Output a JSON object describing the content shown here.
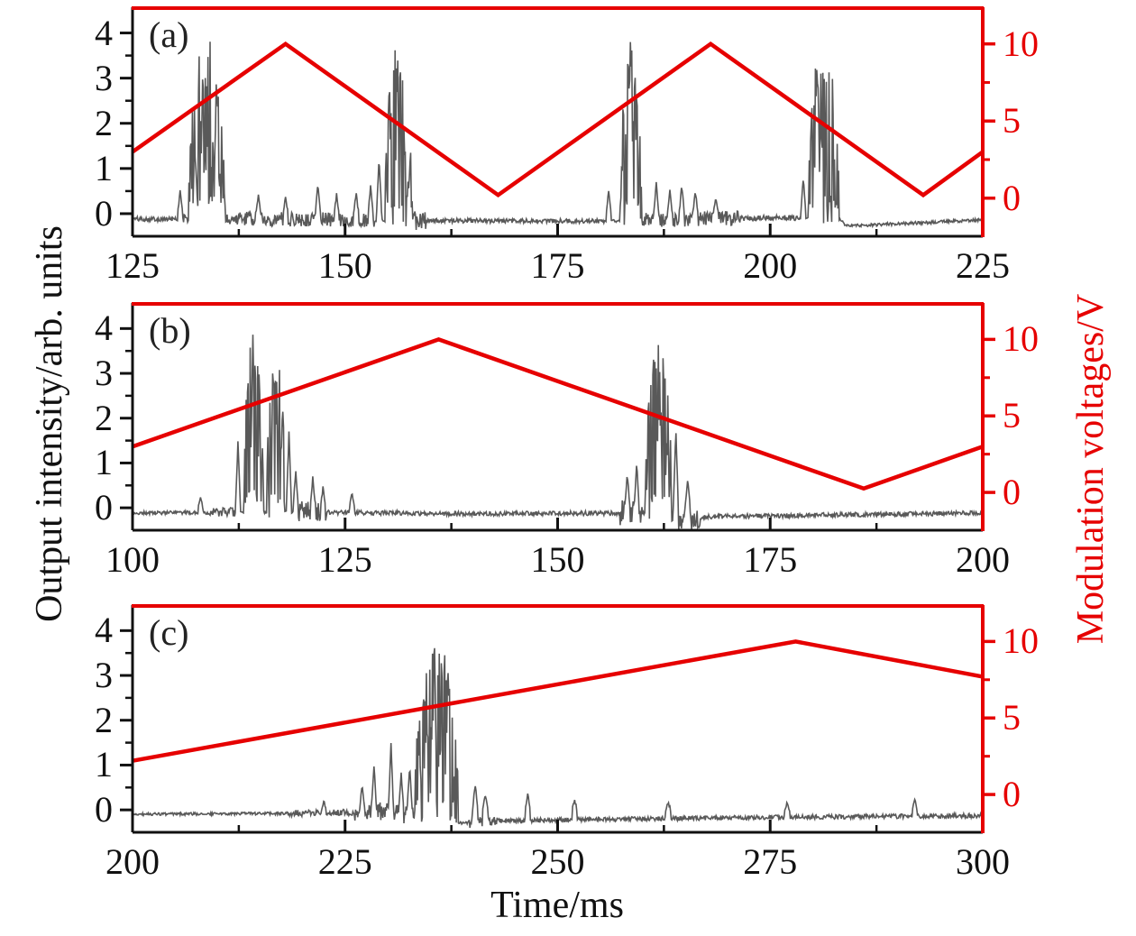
{
  "figure": {
    "xlabel": "Time/ms",
    "ylabel_left": "Output intensity/arb. units",
    "ylabel_right": "Modulation voltages/V",
    "colors": {
      "voltage_red": "#e60000",
      "intensity_gray": "#595959",
      "axis_black": "#111111"
    }
  },
  "chart_data": [
    {
      "type": "line",
      "label": "(a)",
      "x_range": [
        125,
        225
      ],
      "x_tick_labels": [
        125,
        150,
        175,
        200,
        225
      ],
      "x_minor_ticks": [
        137.5,
        162.5,
        187.5,
        212.5
      ],
      "left_axis": {
        "range": [
          -0.5,
          4.55
        ],
        "ticks": [
          0,
          1,
          2,
          3,
          4
        ],
        "minor_ticks": [
          0.5,
          1.5,
          2.5,
          3.5
        ]
      },
      "right_axis": {
        "range": [
          -2.47,
          12.32
        ],
        "ticks": [
          0,
          5,
          10
        ],
        "minor_ticks": [
          2.5,
          7.5
        ]
      },
      "series": [
        {
          "name": "modulation_voltage",
          "axis": "right",
          "color_key": "voltage_red",
          "vertices": [
            [
              125,
              3.0
            ],
            [
              143,
              10.0
            ],
            [
              168,
              0.2
            ],
            [
              193,
              10.0
            ],
            [
              218,
              0.2
            ],
            [
              225,
              3.0
            ]
          ]
        },
        {
          "name": "output_intensity",
          "axis": "left",
          "color_key": "intensity_gray",
          "seed": 101,
          "baseline_points": [
            [
              125,
              -0.12
            ],
            [
              160,
              -0.16
            ],
            [
              180,
              -0.17
            ],
            [
              200,
              -0.1
            ],
            [
              208,
              -0.1
            ],
            [
              209,
              -0.28
            ],
            [
              216,
              -0.22
            ],
            [
              225,
              -0.14
            ]
          ],
          "noise_segments": [
            [
              125,
              131,
              0.05
            ],
            [
              131,
              137.5,
              0.12
            ],
            [
              137.5,
              153.5,
              0.16
            ],
            [
              158,
              159.5,
              0.25
            ],
            [
              160,
              180.5,
              0.05
            ],
            [
              185,
              196.5,
              0.17
            ],
            [
              196.5,
              203.5,
              0.06
            ],
            [
              209,
              225,
              0.035
            ]
          ],
          "spikes": [
            [
              130.6,
              0.5
            ],
            [
              139.8,
              0.42
            ],
            [
              143,
              0.38
            ],
            [
              146.8,
              0.68
            ],
            [
              149,
              0.42
            ],
            [
              151.3,
              0.45
            ],
            [
              153,
              0.6
            ],
            [
              154.0,
              1.25
            ],
            [
              181.0,
              0.5
            ],
            [
              186.6,
              0.68
            ],
            [
              188.2,
              0.55
            ],
            [
              189.6,
              0.62
            ],
            [
              191.2,
              0.5
            ],
            [
              193.6,
              0.35
            ],
            [
              203.9,
              0.8
            ]
          ],
          "bursts": [
            [
              131.6,
              135.9,
              3.9
            ],
            [
              154.7,
              157.9,
              3.85
            ],
            [
              182.3,
              184.9,
              3.85
            ],
            [
              204.5,
              208.1,
              3.9
            ]
          ]
        }
      ]
    },
    {
      "type": "line",
      "label": "(b)",
      "x_range": [
        100,
        200
      ],
      "x_tick_labels": [
        100,
        125,
        150,
        175,
        200
      ],
      "x_minor_ticks": [
        112.5,
        137.5,
        162.5,
        187.5
      ],
      "left_axis": {
        "range": [
          -0.5,
          4.55
        ],
        "ticks": [
          0,
          1,
          2,
          3,
          4
        ],
        "minor_ticks": [
          0.5,
          1.5,
          2.5,
          3.5
        ]
      },
      "right_axis": {
        "range": [
          -2.47,
          12.32
        ],
        "ticks": [
          0,
          5,
          10
        ],
        "minor_ticks": [
          2.5,
          7.5
        ]
      },
      "series": [
        {
          "name": "modulation_voltage",
          "axis": "right",
          "color_key": "voltage_red",
          "vertices": [
            [
              100,
              3.0
            ],
            [
              136,
              10.0
            ],
            [
              186,
              0.25
            ],
            [
              200,
              3.0
            ]
          ]
        },
        {
          "name": "output_intensity",
          "axis": "left",
          "color_key": "intensity_gray",
          "seed": 202,
          "baseline_points": [
            [
              100,
              -0.12
            ],
            [
              120,
              -0.1
            ],
            [
              140,
              -0.14
            ],
            [
              160,
              -0.12
            ],
            [
              164,
              -0.3
            ],
            [
              168,
              -0.2
            ],
            [
              200,
              -0.12
            ]
          ],
          "noise_segments": [
            [
              100,
              109,
              0.04
            ],
            [
              109,
              112.5,
              0.1
            ],
            [
              119.5,
              122.8,
              0.22
            ],
            [
              123,
              157,
              0.05
            ],
            [
              157.3,
              160,
              0.3
            ],
            [
              164.2,
              166.8,
              0.25
            ],
            [
              167,
              200,
              0.05
            ]
          ],
          "spikes": [
            [
              108,
              0.25
            ],
            [
              112.4,
              1.45
            ],
            [
              118.4,
              1.7
            ],
            [
              119.2,
              0.85
            ],
            [
              121.2,
              0.7
            ],
            [
              122.4,
              0.45
            ],
            [
              125.8,
              0.35
            ],
            [
              158.2,
              0.75
            ],
            [
              159.3,
              1.0
            ],
            [
              163.9,
              1.75
            ],
            [
              165.3,
              0.6
            ]
          ],
          "bursts": [
            [
              113.1,
              115.4,
              3.9
            ],
            [
              115.8,
              117.9,
              3.85
            ],
            [
              160.3,
              163.4,
              3.9
            ]
          ]
        }
      ]
    },
    {
      "type": "line",
      "label": "(c)",
      "x_range": [
        200,
        300
      ],
      "x_tick_labels": [
        200,
        225,
        250,
        275,
        300
      ],
      "x_minor_ticks": [
        212.5,
        237.5,
        262.5,
        287.5
      ],
      "left_axis": {
        "range": [
          -0.5,
          4.55
        ],
        "ticks": [
          0,
          1,
          2,
          3,
          4
        ],
        "minor_ticks": [
          0.5,
          1.5,
          2.5,
          3.5
        ]
      },
      "right_axis": {
        "range": [
          -2.47,
          12.32
        ],
        "ticks": [
          0,
          5,
          10
        ],
        "minor_ticks": [
          2.5,
          7.5
        ]
      },
      "series": [
        {
          "name": "modulation_voltage",
          "axis": "right",
          "color_key": "voltage_red",
          "vertices": [
            [
              200,
              2.2
            ],
            [
              278,
              10.0
            ],
            [
              300,
              7.7
            ]
          ]
        },
        {
          "name": "output_intensity",
          "axis": "left",
          "color_key": "intensity_gray",
          "seed": 303,
          "baseline_points": [
            [
              200,
              -0.1
            ],
            [
              220,
              -0.08
            ],
            [
              229,
              -0.05
            ],
            [
              239,
              -0.3
            ],
            [
              243,
              -0.25
            ],
            [
              270,
              -0.18
            ],
            [
              300,
              -0.13
            ]
          ],
          "noise_segments": [
            [
              200,
              218,
              0.03
            ],
            [
              218,
              226,
              0.07
            ],
            [
              226,
              233,
              0.2
            ],
            [
              239.5,
              243,
              0.12
            ],
            [
              243,
              300,
              0.05
            ]
          ],
          "spikes": [
            [
              222.5,
              0.2
            ],
            [
              227,
              0.55
            ],
            [
              228.4,
              1.0
            ],
            [
              230.4,
              1.5
            ],
            [
              231.6,
              0.8
            ],
            [
              232.6,
              1.0
            ],
            [
              240.3,
              0.6
            ],
            [
              241.5,
              0.35
            ],
            [
              246.5,
              0.35
            ],
            [
              252,
              0.2
            ],
            [
              263,
              0.18
            ],
            [
              277,
              0.15
            ],
            [
              292,
              0.25
            ]
          ],
          "bursts": [
            [
              233.2,
              238.3,
              3.9
            ]
          ]
        }
      ]
    }
  ]
}
